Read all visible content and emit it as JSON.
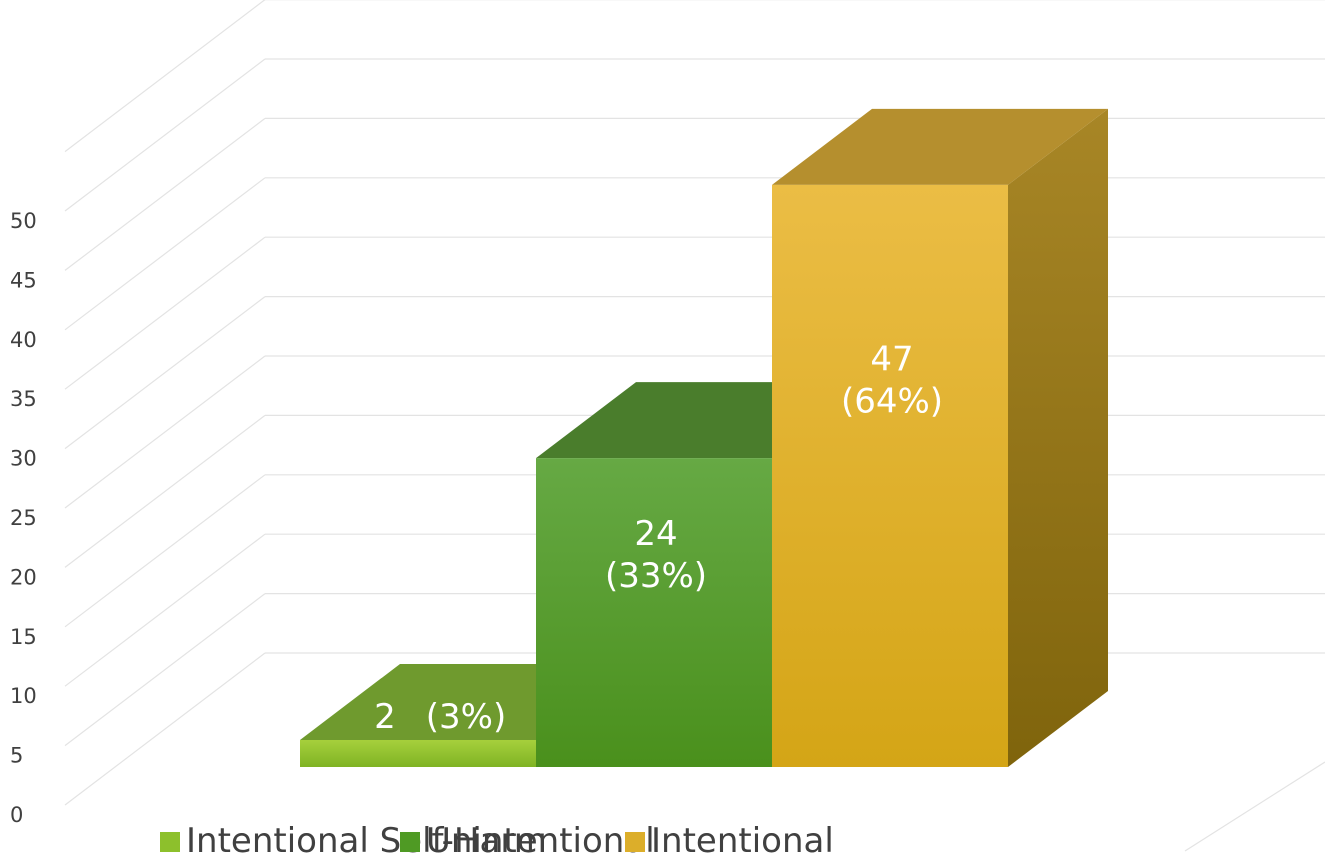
{
  "chart_data": {
    "type": "bar",
    "title": "",
    "xlabel": "",
    "ylabel": "",
    "ylim": [
      0,
      50
    ],
    "yticks": [
      0,
      5,
      10,
      15,
      20,
      25,
      30,
      35,
      40,
      45,
      50
    ],
    "grid": true,
    "three_d": true,
    "legend_position": "bottom",
    "categories": [
      "Intentional Self-Harm",
      "Unintentional",
      "Intentional"
    ],
    "values": [
      2,
      24,
      47
    ],
    "value_labels": [
      "2",
      "24",
      "47"
    ],
    "percent_labels": [
      "(3%)",
      "(33%)",
      "(64%)"
    ],
    "colors": [
      "#8dc02c",
      "#4f9a24",
      "#dcae2a"
    ],
    "legend": [
      "Intentional Self-Harm",
      "Unintentional",
      "Intentional"
    ]
  }
}
